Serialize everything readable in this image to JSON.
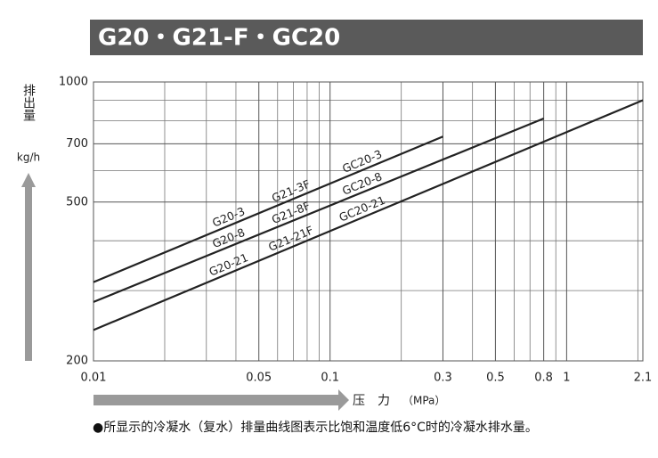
{
  "chart_data": {
    "type": "line",
    "title": "G20・G21-F・GC20",
    "y_label": "排出量",
    "y_unit": "kg/h",
    "x_label": "压　力",
    "x_unit": "（MPa）",
    "log_x": true,
    "log_y": true,
    "grid": true,
    "xlim": [
      0.01,
      2.1
    ],
    "ylim": [
      200,
      1000
    ],
    "xticks": [
      0.01,
      0.05,
      0.1,
      0.3,
      0.5,
      0.8,
      1,
      2.1
    ],
    "yticks": [
      200,
      500,
      700,
      1000
    ],
    "xgrid": [
      0.02,
      0.03,
      0.04,
      0.06,
      0.07,
      0.08,
      0.09,
      0.2,
      0.4,
      0.6,
      0.7,
      0.9,
      2
    ],
    "ygrid": [
      300,
      400,
      600,
      800,
      900
    ],
    "series": [
      {
        "labels": [
          "G20-3",
          "G21-3F",
          "GC20-3"
        ],
        "color": "#222222",
        "x": [
          0.01,
          0.3
        ],
        "values": [
          315,
          730
        ]
      },
      {
        "labels": [
          "G20-8",
          "G21-8F",
          "GC20-8"
        ],
        "color": "#222222",
        "x": [
          0.01,
          0.8
        ],
        "values": [
          281,
          810
        ]
      },
      {
        "labels": [
          "G20-21",
          "G21-21F",
          "GC20-21"
        ],
        "color": "#222222",
        "x": [
          0.01,
          2.1
        ],
        "values": [
          239,
          900
        ]
      }
    ],
    "note": "●所显示的冷凝水（复水）排量曲线图表示比饱和温度低6°C时的冷凝水排水量。"
  }
}
